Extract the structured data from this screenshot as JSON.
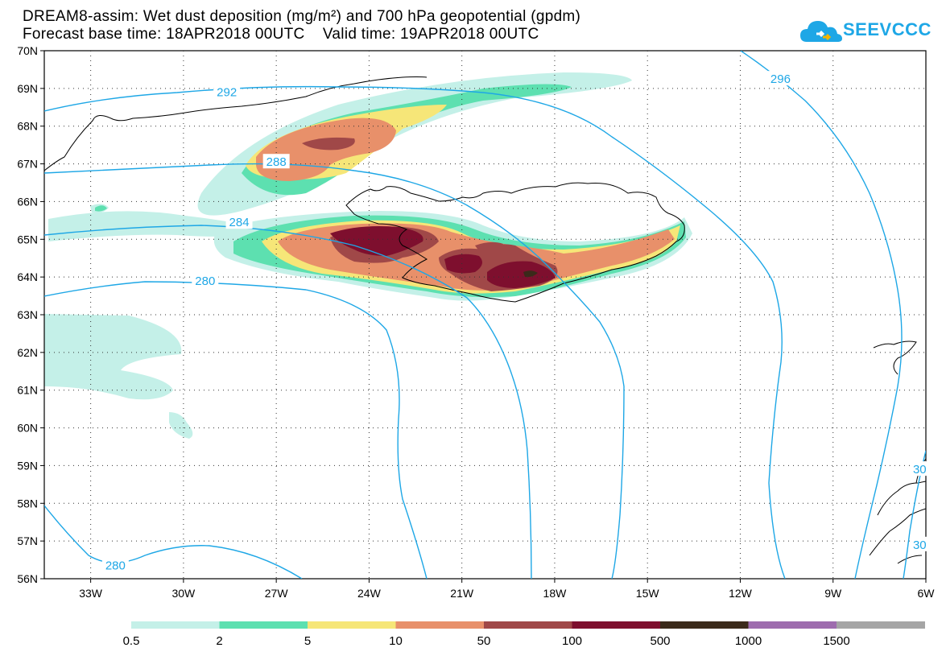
{
  "title": {
    "line1": "DREAM8-assim: Wet dust deposition (mg/m²) and 700 hPa geopotential (gpdm)",
    "line2": "Forecast base time: 18APR2018 00UTC    Valid time: 19APR2018 00UTC"
  },
  "logo": {
    "text": "SEEVCCC",
    "icon": "cloud-icon",
    "color": "#1ea7e6"
  },
  "map_data": {
    "projection": "lat-lon",
    "lon_range": [
      -34.5,
      -6
    ],
    "lat_range": [
      56,
      70
    ],
    "lon_ticks": [
      {
        "value": -33,
        "label": "33W"
      },
      {
        "value": -30,
        "label": "30W"
      },
      {
        "value": -27,
        "label": "27W"
      },
      {
        "value": -24,
        "label": "24W"
      },
      {
        "value": -21,
        "label": "21W"
      },
      {
        "value": -18,
        "label": "18W"
      },
      {
        "value": -15,
        "label": "15W"
      },
      {
        "value": -12,
        "label": "12W"
      },
      {
        "value": -9,
        "label": "9W"
      },
      {
        "value": -6,
        "label": "6W"
      }
    ],
    "lat_ticks": [
      {
        "value": 56,
        "label": "56N"
      },
      {
        "value": 57,
        "label": "57N"
      },
      {
        "value": 58,
        "label": "58N"
      },
      {
        "value": 59,
        "label": "59N"
      },
      {
        "value": 60,
        "label": "60N"
      },
      {
        "value": 61,
        "label": "61N"
      },
      {
        "value": 62,
        "label": "62N"
      },
      {
        "value": 63,
        "label": "63N"
      },
      {
        "value": 64,
        "label": "64N"
      },
      {
        "value": 65,
        "label": "65N"
      },
      {
        "value": 66,
        "label": "66N"
      },
      {
        "value": 67,
        "label": "67N"
      },
      {
        "value": 68,
        "label": "68N"
      },
      {
        "value": 69,
        "label": "69N"
      },
      {
        "value": 70,
        "label": "70N"
      }
    ],
    "grid": "dotted",
    "contour_color": "#1ea7e6",
    "contour_labels": [
      {
        "text": "292",
        "lon": -28.6,
        "lat": 68.9
      },
      {
        "text": "288",
        "lon": -27.0,
        "lat": 67.05
      },
      {
        "text": "284",
        "lon": -28.2,
        "lat": 65.45
      },
      {
        "text": "280",
        "lon": -29.3,
        "lat": 63.9
      },
      {
        "text": "280",
        "lon": -32.2,
        "lat": 56.35
      },
      {
        "text": "296",
        "lon": -10.7,
        "lat": 69.25
      },
      {
        "text": "30",
        "lon": -6.2,
        "lat": 58.9
      },
      {
        "text": "30",
        "lon": -6.2,
        "lat": 56.9
      }
    ]
  },
  "legend": {
    "colors": [
      "#c4f0e8",
      "#5de0b0",
      "#f6e678",
      "#e8906a",
      "#a04848",
      "#7e0f2e",
      "#3b2a1a",
      "#9e6cae",
      "#a5a5a5"
    ],
    "labels": [
      "0.5",
      "2",
      "5",
      "10",
      "50",
      "100",
      "500",
      "1000",
      "1500"
    ]
  }
}
